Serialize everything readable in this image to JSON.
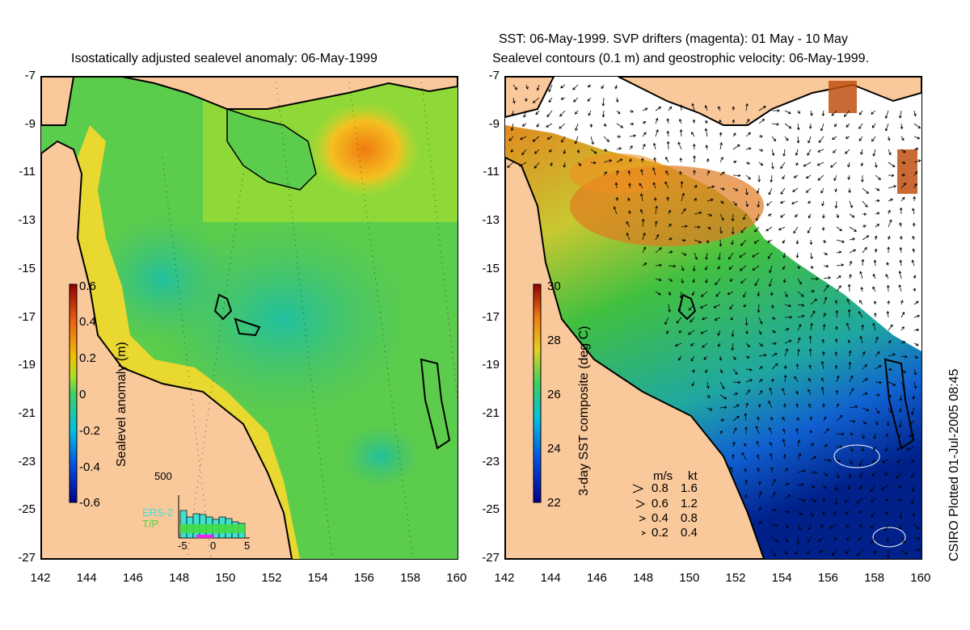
{
  "left_panel": {
    "title": "Isostatically adjusted sealevel anomaly: 06-May-1999",
    "colorbar": {
      "label": "Sealevel anomaly (m)",
      "ticks": [
        "0.6",
        "0.4",
        "0.2",
        "0",
        "-0.2",
        "-0.4",
        "-0.6"
      ]
    },
    "histogram": {
      "ymax_label": "500",
      "legend": [
        "ERS-2",
        "T/P"
      ],
      "xticks": [
        "-5",
        "0",
        "5"
      ],
      "colors": {
        "ers2": "#40e0d0",
        "tp": "#44dd44"
      }
    }
  },
  "right_panel": {
    "title_line1": "SST: 06-May-1999. SVP drifters (magenta): 01 May - 10 May",
    "title_line2": "Sealevel contours (0.1 m) and geostrophic velocity: 06-May-1999.",
    "colorbar": {
      "label": "3-day SST composite (deg C)",
      "ticks": [
        "30",
        "28",
        "26",
        "24",
        "22"
      ]
    },
    "velocity_legend": {
      "header_ms": "m/s",
      "header_kt": "kt",
      "rows": [
        {
          "ms": "0.8",
          "kt": "1.6"
        },
        {
          "ms": "0.6",
          "kt": "1.2"
        },
        {
          "ms": "0.4",
          "kt": "0.8"
        },
        {
          "ms": "0.2",
          "kt": "0.4"
        }
      ]
    }
  },
  "axes": {
    "y_ticks": [
      "-7",
      "-9",
      "-11",
      "-13",
      "-15",
      "-17",
      "-19",
      "-21",
      "-23",
      "-25",
      "-27"
    ],
    "x_ticks": [
      "142",
      "144",
      "146",
      "148",
      "150",
      "152",
      "154",
      "156",
      "158",
      "160"
    ]
  },
  "footer_vertical": "CSIRO Plotted 01-Jul-2005 08:45",
  "colors": {
    "land": "#f9c89b",
    "coast": "#000000"
  }
}
